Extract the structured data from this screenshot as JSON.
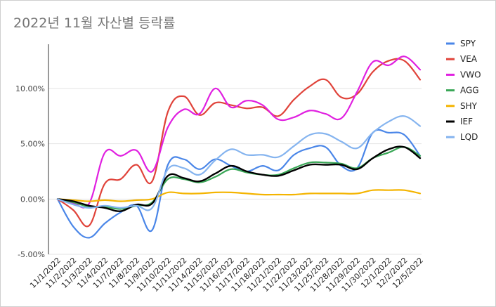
{
  "chart_data": {
    "type": "line",
    "title": "2022년 11월 자산별 등락률",
    "xlabel": "",
    "ylabel": "",
    "ylim": [
      -0.05,
      0.14
    ],
    "yticks": [
      -0.05,
      0,
      0.05,
      0.1
    ],
    "ytick_labels": [
      "-5.00%",
      "0.00%",
      "5.00%",
      "10.00%"
    ],
    "grid": true,
    "legend_position": "right",
    "categories": [
      "11/1/2022",
      "11/2/2022",
      "11/3/2022",
      "11/4/2022",
      "11/7/2022",
      "11/8/2022",
      "11/9/2022",
      "11/10/2022",
      "11/11/2022",
      "11/14/2022",
      "11/15/2022",
      "11/16/2022",
      "11/17/2022",
      "11/18/2022",
      "11/21/2022",
      "11/22/2022",
      "11/23/2022",
      "11/25/2022",
      "11/28/2022",
      "11/29/2022",
      "11/30/2022",
      "12/1/2022",
      "12/2/2022",
      "12/5/2022"
    ],
    "series": [
      {
        "name": "SPY",
        "color": "#4a86e8",
        "values": [
          0,
          -0.025,
          -0.035,
          -0.022,
          -0.012,
          -0.006,
          -0.028,
          0.031,
          0.036,
          0.027,
          0.036,
          0.03,
          0.025,
          0.03,
          0.026,
          0.04,
          0.046,
          0.047,
          0.03,
          0.028,
          0.06,
          0.06,
          0.058,
          0.039
        ]
      },
      {
        "name": "VEA",
        "color": "#e0433a",
        "values": [
          0,
          -0.01,
          -0.024,
          0.014,
          0.018,
          0.031,
          0.016,
          0.079,
          0.093,
          0.076,
          0.087,
          0.085,
          0.082,
          0.083,
          0.075,
          0.09,
          0.102,
          0.108,
          0.092,
          0.095,
          0.115,
          0.125,
          0.125,
          0.108
        ]
      },
      {
        "name": "VWO",
        "color": "#e020e0",
        "values": [
          0,
          -0.004,
          -0.004,
          0.042,
          0.039,
          0.044,
          0.025,
          0.065,
          0.081,
          0.077,
          0.1,
          0.083,
          0.089,
          0.085,
          0.072,
          0.074,
          0.08,
          0.077,
          0.073,
          0.097,
          0.124,
          0.121,
          0.129,
          0.117
        ]
      },
      {
        "name": "AGG",
        "color": "#3aa757",
        "values": [
          0,
          -0.003,
          -0.007,
          -0.007,
          -0.009,
          -0.006,
          -0.003,
          0.018,
          0.018,
          0.015,
          0.02,
          0.027,
          0.024,
          0.022,
          0.022,
          0.028,
          0.033,
          0.033,
          0.032,
          0.028,
          0.037,
          0.042,
          0.047,
          0.039
        ]
      },
      {
        "name": "SHY",
        "color": "#f4b400",
        "values": [
          0,
          -0.001,
          -0.002,
          -0.001,
          -0.002,
          -0.001,
          0.0,
          0.006,
          0.005,
          0.005,
          0.006,
          0.006,
          0.005,
          0.004,
          0.004,
          0.004,
          0.005,
          0.005,
          0.005,
          0.005,
          0.008,
          0.008,
          0.008,
          0.005
        ]
      },
      {
        "name": "IEF",
        "color": "#000000",
        "values": [
          0,
          -0.002,
          -0.006,
          -0.008,
          -0.011,
          -0.005,
          -0.004,
          0.021,
          0.019,
          0.016,
          0.023,
          0.03,
          0.025,
          0.022,
          0.021,
          0.026,
          0.031,
          0.031,
          0.031,
          0.027,
          0.037,
          0.045,
          0.047,
          0.037
        ]
      },
      {
        "name": "LQD",
        "color": "#85b4ef",
        "values": [
          0,
          -0.005,
          -0.008,
          -0.006,
          -0.008,
          -0.006,
          -0.008,
          0.027,
          0.028,
          0.022,
          0.035,
          0.045,
          0.04,
          0.04,
          0.038,
          0.048,
          0.058,
          0.059,
          0.052,
          0.046,
          0.06,
          0.07,
          0.075,
          0.066
        ]
      }
    ]
  }
}
